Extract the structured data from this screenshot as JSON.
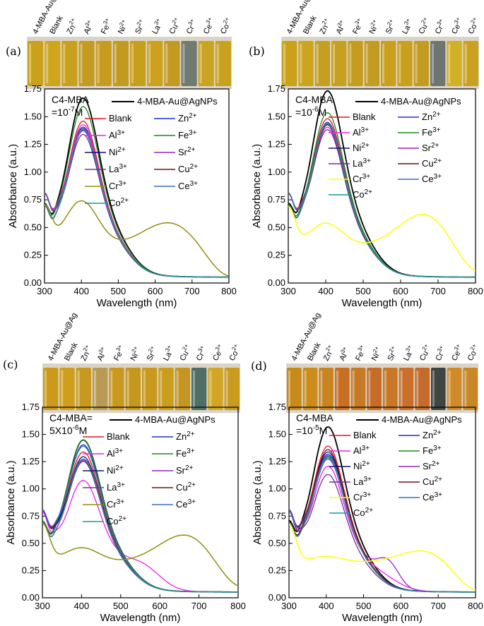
{
  "figure": {
    "xlabel": "Wavelength (nm)",
    "ylabel": "Absorbance (a.u.)",
    "vial_labels": [
      "4-MBA-Au@Ag",
      "Blank",
      "Zn2+",
      "Al3+",
      "Fe3+",
      "Ni2+",
      "Sr2+",
      "La3+",
      "Cu2+",
      "Cr3+",
      "Ce3+",
      "Co2+"
    ],
    "legend_entries": [
      "4-MBA-Au@AgNPs",
      "Blank",
      "Zn2+",
      "Al3+",
      "Fe3+",
      "Ni2+",
      "Sr2+",
      "La3+",
      "Cu2+",
      "Cr3+",
      "Ce3+",
      "Co2+"
    ],
    "series_colors": [
      "#000000",
      "#e8141c",
      "#1f2fd8",
      "#f01ef0",
      "#198a1e",
      "#101070",
      "#9a22c9",
      "#7b2a9a",
      "#7a0e0e",
      "#8f8f10",
      "#3a6ebf",
      "#1a9a9a"
    ],
    "cr_colors_by_panel": [
      "#8f8f10",
      "#ffff00",
      "#8f8f10",
      "#ffff00"
    ],
    "cr_labels_by_panel": [
      "Cr3+",
      "Cr3+",
      "Cr3+",
      "Cr3+"
    ]
  },
  "chart_data": [
    {
      "type": "line",
      "panel": "(a)",
      "conc_line1": "C4-MBA",
      "conc_line2": "=10-7M",
      "xlim": [
        300,
        800
      ],
      "ylim": [
        0,
        1.75
      ],
      "xticks": [
        "300",
        "400",
        "500",
        "600",
        "700",
        "800"
      ],
      "yticks": [
        "0.00",
        "0.25",
        "0.50",
        "0.75",
        "1.00",
        "1.25",
        "1.50",
        "1.75"
      ],
      "peaks": [
        1.42,
        1.23,
        1.18,
        1.2,
        1.35,
        1.16,
        1.15,
        1.12,
        1.17
      ],
      "cr_peak": 0.74,
      "cr_peak2": 0.55,
      "cr_peak2_x": 640,
      "vial_colors": [
        "#c9a21a",
        "#cfa51c",
        "#c8a01e",
        "#c49b20",
        "#c79c1e",
        "#c39a1f",
        "#c89e1d",
        "#cba11d",
        "#c29a22",
        "#6f7a70",
        "#c9a321",
        "#caa11e"
      ]
    },
    {
      "type": "line",
      "panel": "(b)",
      "conc_line1": "C4-MBA",
      "conc_line2": "=10-6M",
      "xlim": [
        300,
        800
      ],
      "ylim": [
        0,
        1.75
      ],
      "xticks": [
        "300",
        "400",
        "500",
        "600",
        "700",
        "800"
      ],
      "yticks": [
        "0.00",
        "0.25",
        "0.50",
        "0.75",
        "1.00",
        "1.25",
        "1.50",
        "1.75"
      ],
      "peaks": [
        1.48,
        1.25,
        1.22,
        1.18,
        1.3,
        1.2,
        1.2,
        1.16,
        1.2
      ],
      "cr_peak": 0.54,
      "cr_peak2": 0.64,
      "cr_peak2_x": 670,
      "vial_colors": [
        "#c9a21a",
        "#cda41d",
        "#c69f20",
        "#c8a01f",
        "#c59c1f",
        "#c39b21",
        "#c99f1d",
        "#c8a01c",
        "#c39a22",
        "#6d7670",
        "#d1b024",
        "#c9a11f"
      ]
    },
    {
      "type": "line",
      "panel": "(c)",
      "conc_line1": "C4-MBA=",
      "conc_line2": "5X10-6M",
      "xlim": [
        300,
        800
      ],
      "ylim": [
        0,
        1.75
      ],
      "xticks": [
        "300",
        "400",
        "500",
        "600",
        "700",
        "800"
      ],
      "yticks": [
        "0.00",
        "0.25",
        "0.50",
        "0.75",
        "1.00",
        "1.25",
        "1.50",
        "1.75"
      ],
      "peaks": [
        1.22,
        1.12,
        1.18,
        0.88,
        1.22,
        1.08,
        1.05,
        1.04,
        1.06
      ],
      "cr_peak": 0.46,
      "cr_peak2": 0.6,
      "cr_peak2_x": 675,
      "vial_colors": [
        "#cc9a1a",
        "#cf9f1c",
        "#c79a1f",
        "#b99a55",
        "#c9981f",
        "#c6971f",
        "#c9991d",
        "#cb9d1c",
        "#c49621",
        "#4f6e66",
        "#d3a524",
        "#c99b1f"
      ]
    },
    {
      "type": "line",
      "panel": "(d)",
      "conc_line1": "C4-MBA",
      "conc_line2": "=10-5M",
      "xlim": [
        300,
        800
      ],
      "ylim": [
        0,
        1.75
      ],
      "xticks": [
        "300",
        "400",
        "500",
        "600",
        "700",
        "800"
      ],
      "yticks": [
        "0.00",
        "0.25",
        "0.50",
        "0.75",
        "1.00",
        "1.25",
        "1.50",
        "1.75"
      ],
      "peaks": [
        1.33,
        1.17,
        1.1,
        1.0,
        1.08,
        1.12,
        1.06,
        0.93,
        1.14
      ],
      "cr_peak": 0.38,
      "cr_peak2": 0.45,
      "cr_peak2_x": 675,
      "vial_colors": [
        "#c88a1a",
        "#cc8c1c",
        "#c9841f",
        "#c76f22",
        "#c77a25",
        "#c56c28",
        "#c87826",
        "#c96f2a",
        "#c46a2b",
        "#3f4540",
        "#d08a2a",
        "#c98727"
      ]
    }
  ]
}
